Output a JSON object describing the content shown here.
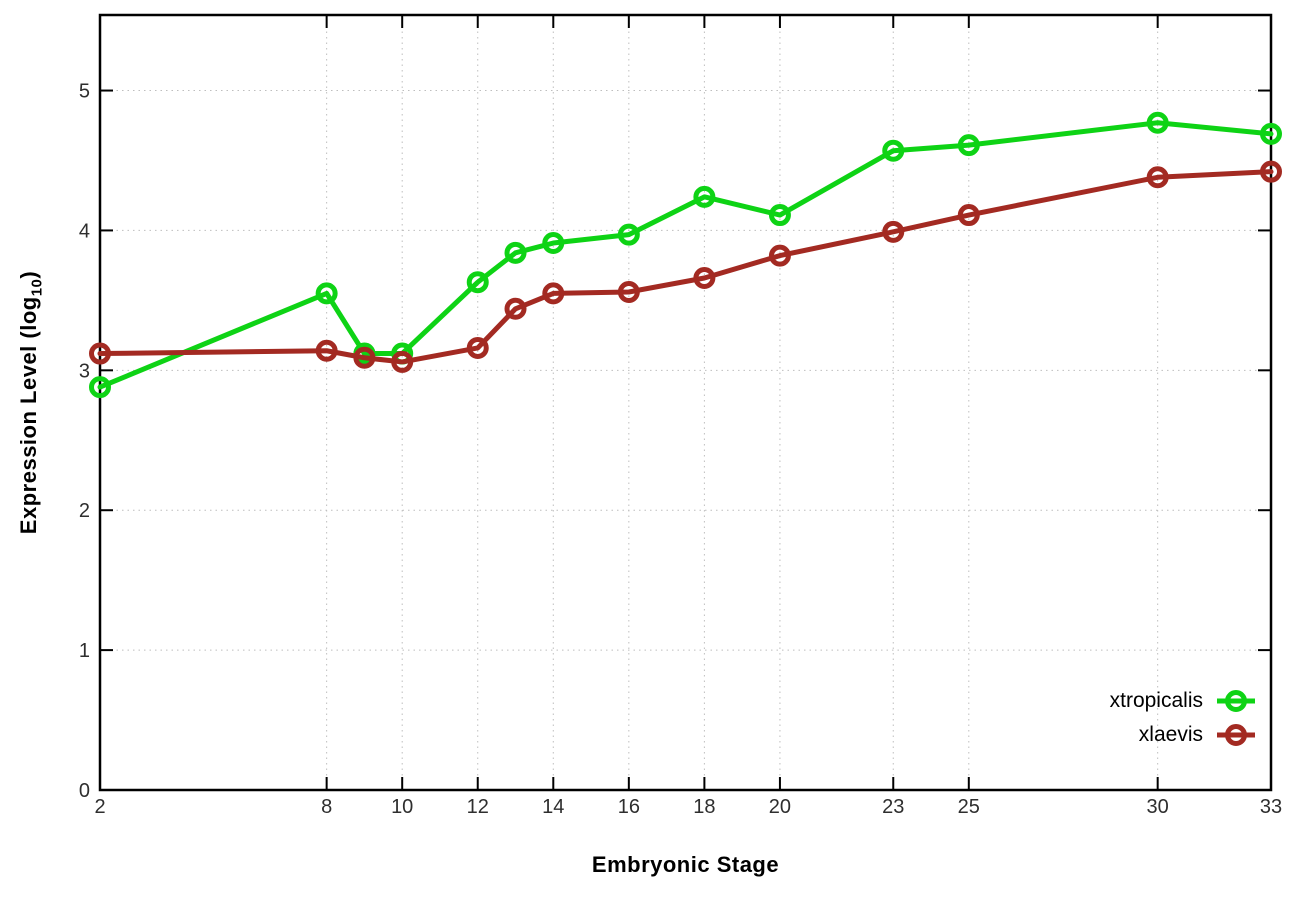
{
  "chart_data": {
    "type": "line",
    "title": "",
    "xlabel": "Embryonic Stage",
    "ylabel": "Expression Level (log10)",
    "ylabel_parts": {
      "main": "Expression Level (log",
      "sub": "10",
      "close": ")"
    },
    "x": [
      2,
      8,
      9,
      10,
      12,
      13,
      14,
      16,
      18,
      20,
      23,
      25,
      30,
      33
    ],
    "x_tick_labels": [
      2,
      8,
      10,
      12,
      14,
      16,
      18,
      20,
      23,
      25,
      30,
      33
    ],
    "y_tick_labels": [
      0,
      1,
      2,
      3,
      4,
      5
    ],
    "xlim": [
      2,
      33
    ],
    "ylim": [
      0,
      5.54
    ],
    "grid": true,
    "legend_position": "inside-bottom-right",
    "series": [
      {
        "name": "xtropicalis",
        "color": "#0ed315",
        "marker": "open-circle",
        "values": [
          2.88,
          3.55,
          3.12,
          3.12,
          3.63,
          3.84,
          3.91,
          3.97,
          4.24,
          4.11,
          4.57,
          4.61,
          4.77,
          4.69
        ]
      },
      {
        "name": "xlaevis",
        "color": "#a32a22",
        "marker": "open-circle",
        "values": [
          3.12,
          3.14,
          3.09,
          3.06,
          3.16,
          3.44,
          3.55,
          3.56,
          3.66,
          3.82,
          3.99,
          4.11,
          4.38,
          4.42
        ]
      }
    ],
    "style": {
      "border_color": "#000000",
      "grid_color": "#bebebe",
      "tick_label_color": "#2e2e2e",
      "line_width": 5,
      "marker_radius": 8.5,
      "marker_stroke": 5
    }
  }
}
